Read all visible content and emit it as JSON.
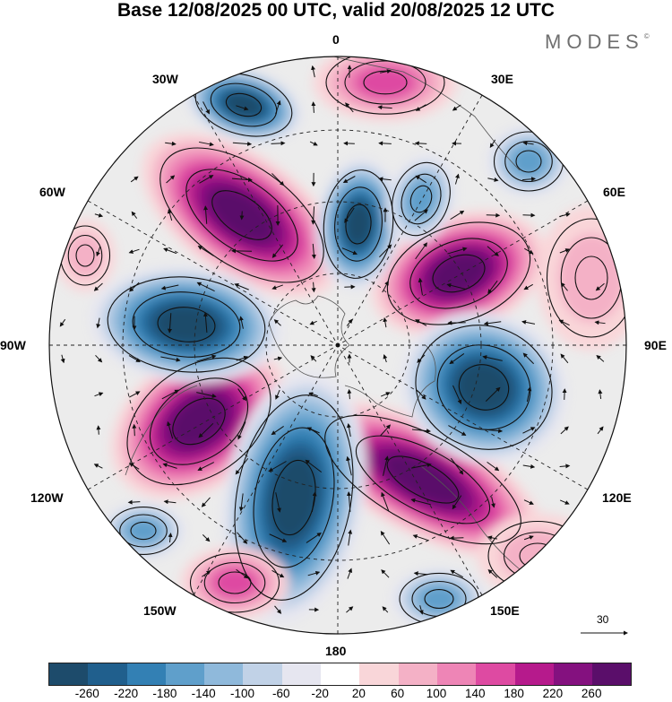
{
  "title": "Base 12/08/2025 00 UTC, valid 20/08/2025 12 UTC",
  "brand": {
    "name": "MODES",
    "mark": "©"
  },
  "longitudes": {
    "top": "0",
    "top_right": "30E",
    "right_upper": "60E",
    "right": "90E",
    "right_lower": "120E",
    "bottom_right": "150E",
    "bottom": "180",
    "bottom_left": "150W",
    "left_lower": "120W",
    "left": "90W",
    "left_upper": "60W",
    "top_left": "30W"
  },
  "vector_scale": {
    "label": "30"
  },
  "colorbar": {
    "colors": [
      "#1d4b6b",
      "#205f8d",
      "#3380b4",
      "#5f9fcb",
      "#8fb9db",
      "#c1d2e7",
      "#e6e6f0",
      "#ffffff",
      "#f9d6d9",
      "#f4b1c6",
      "#ee85b6",
      "#de4aa2",
      "#b61a8c",
      "#84117f",
      "#5a0e6a"
    ],
    "ticks": [
      "-260",
      "-220",
      "-180",
      "-140",
      "-100",
      "-60",
      "-20",
      "20",
      "60",
      "100",
      "140",
      "180",
      "220",
      "260"
    ]
  }
}
